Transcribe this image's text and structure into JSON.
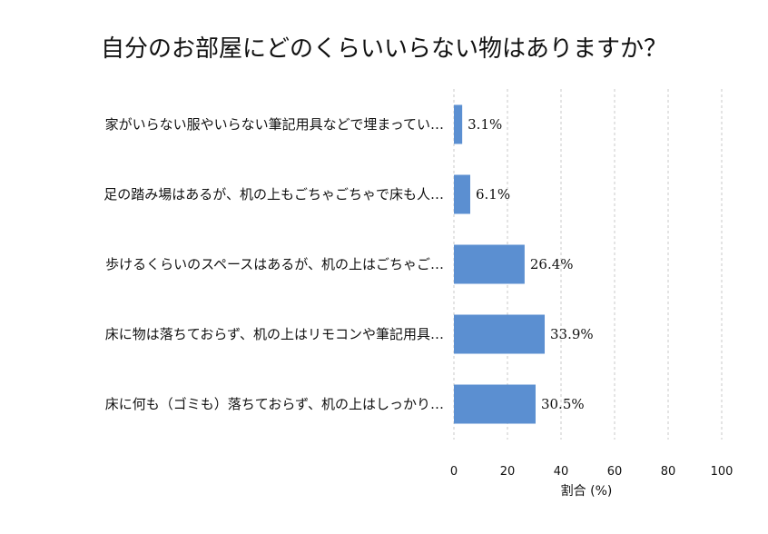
{
  "chart_data": {
    "type": "bar",
    "orientation": "horizontal",
    "title": "自分のお部屋にどのくらいいらない物はありますか？",
    "categories": [
      "家がいらない服やいらない筆記用具などで埋まってい…",
      "足の踏み場はあるが、机の上もごちゃごちゃで床も人…",
      "歩けるくらいのスペースはあるが、机の上はごちゃご…",
      "床に物は落ちておらず、机の上はリモコンや筆記用具…",
      "床に何も（ゴミも）落ちておらず、机の上はしっかり…"
    ],
    "values": [
      3.1,
      6.1,
      26.4,
      33.9,
      30.5
    ],
    "data_labels": [
      "3.1%",
      "6.1%",
      "26.4%",
      "33.9%",
      "30.5%"
    ],
    "xlabel": "割合 (%)",
    "ylabel": "",
    "xlim": [
      0,
      100
    ],
    "xticks": [
      0,
      20,
      40,
      60,
      80,
      100
    ],
    "xtick_labels": [
      "0",
      "20",
      "40",
      "60",
      "80",
      "100"
    ],
    "grid": true,
    "bar_color": "#5b8fd1"
  }
}
